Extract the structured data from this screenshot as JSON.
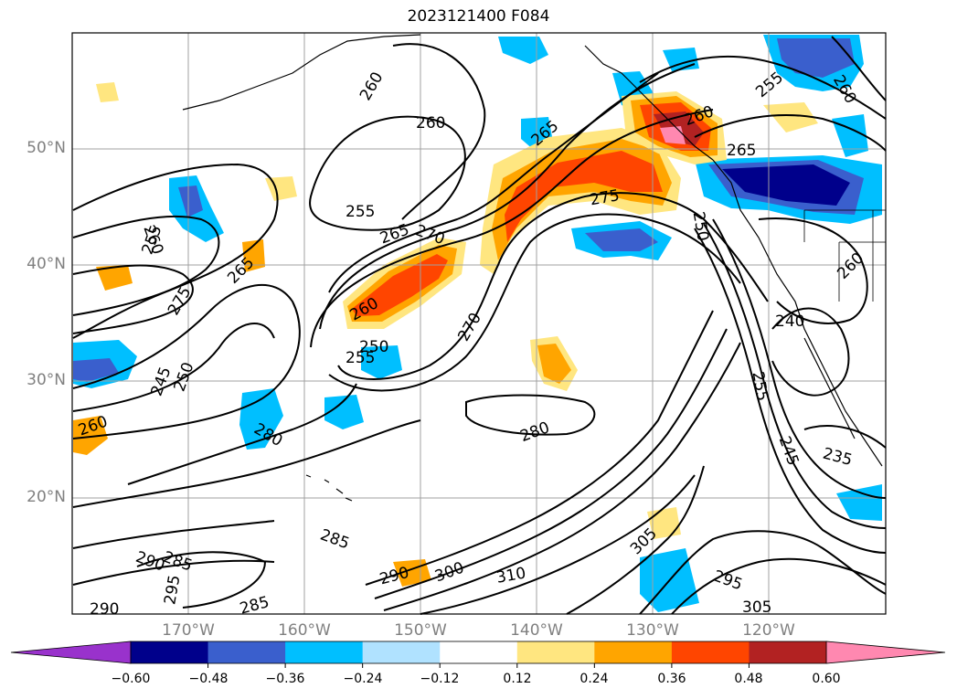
{
  "title": "2023121400 F084",
  "lat_labels": [
    "50°N",
    "40°N",
    "30°N",
    "20°N"
  ],
  "lon_labels": [
    "170°W",
    "160°W",
    "150°W",
    "140°W",
    "130°W",
    "120°W"
  ],
  "colorbar": {
    "ticks": [
      "−0.60",
      "−0.48",
      "−0.36",
      "−0.24",
      "−0.12",
      "0.12",
      "0.24",
      "0.36",
      "0.48",
      "0.60"
    ],
    "colors": [
      "#9932cc",
      "#00008b",
      "#3a5fcd",
      "#00bfff",
      "#b0e2ff",
      "#ffffff",
      "#ffe680",
      "#ffa500",
      "#ff4500",
      "#b22222",
      "#ff88b0"
    ]
  },
  "contour_labels": [
    "260",
    "260",
    "255",
    "265",
    "270",
    "265",
    "275",
    "260",
    "250",
    "255",
    "245",
    "250",
    "260",
    "280",
    "285",
    "290",
    "285",
    "295",
    "290",
    "285",
    "290",
    "300",
    "310",
    "305",
    "295",
    "305",
    "280",
    "270",
    "275",
    "255",
    "260",
    "265",
    "260",
    "265",
    "255",
    "250",
    "240",
    "260",
    "255",
    "245",
    "235",
    "260"
  ],
  "colors": {
    "contour": "#000000",
    "grid": "#a0a0a0",
    "axis_label": "#808080"
  }
}
